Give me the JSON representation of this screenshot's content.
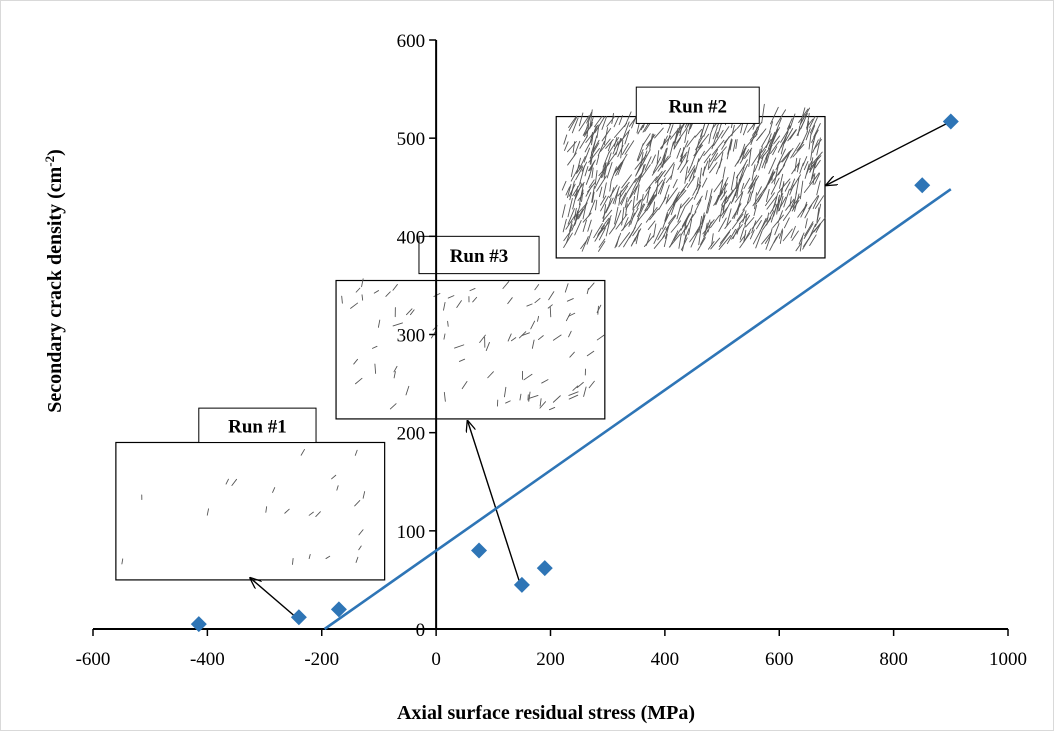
{
  "chart_data": {
    "type": "scatter",
    "title": "",
    "xlabel": "Axial surface residual stress (MPa)",
    "ylabel_main": "Secondary crack density (cm",
    "ylabel_sup": "-2",
    "ylabel_end": ")",
    "xlim": [
      -600,
      1000
    ],
    "ylim": [
      0,
      600
    ],
    "x_ticks": [
      -600,
      -400,
      -200,
      0,
      200,
      400,
      600,
      800,
      1000
    ],
    "y_ticks": [
      0,
      100,
      200,
      300,
      400,
      500,
      600
    ],
    "x_tick_labels": [
      "-600",
      "-400",
      "-200",
      "0",
      "200",
      "400",
      "600",
      "800",
      "1000"
    ],
    "y_tick_labels": [
      "0",
      "100",
      "200",
      "300",
      "400",
      "500",
      "600"
    ],
    "grid": false,
    "legend": "none",
    "series": [
      {
        "marker": "diamond",
        "color": "#2E75B6",
        "points": [
          {
            "x": -415,
            "y": 5
          },
          {
            "x": -240,
            "y": 12
          },
          {
            "x": -170,
            "y": 20
          },
          {
            "x": 75,
            "y": 80
          },
          {
            "x": 150,
            "y": 45
          },
          {
            "x": 190,
            "y": 62
          },
          {
            "x": 850,
            "y": 452
          },
          {
            "x": 900,
            "y": 517
          }
        ]
      }
    ],
    "trendline": {
      "color": "#2E75B6",
      "x": [
        -195,
        900
      ],
      "y": [
        0,
        448
      ]
    },
    "annotations": [
      {
        "label": "Run #1",
        "image_density": "low",
        "label_box_data": [
          -415,
          225,
          -210,
          190
        ],
        "image_box_data": [
          -560,
          190,
          -90,
          50
        ],
        "arrow_from": [
          -245,
          12
        ],
        "arrow_to": [
          -325,
          52
        ]
      },
      {
        "label": "Run #3",
        "image_density": "medium",
        "label_box_data": [
          -30,
          400,
          180,
          362
        ],
        "image_box_data": [
          -175,
          355,
          295,
          214
        ],
        "arrow_from": [
          148,
          44
        ],
        "arrow_to": [
          55,
          212
        ]
      },
      {
        "label": "Run #2",
        "image_density": "high",
        "label_box_data": [
          350,
          552,
          565,
          515
        ],
        "image_box_data": [
          210,
          522,
          680,
          378
        ],
        "arrow_from": [
          900,
          517
        ],
        "arrow_to": [
          682,
          452
        ]
      }
    ]
  }
}
